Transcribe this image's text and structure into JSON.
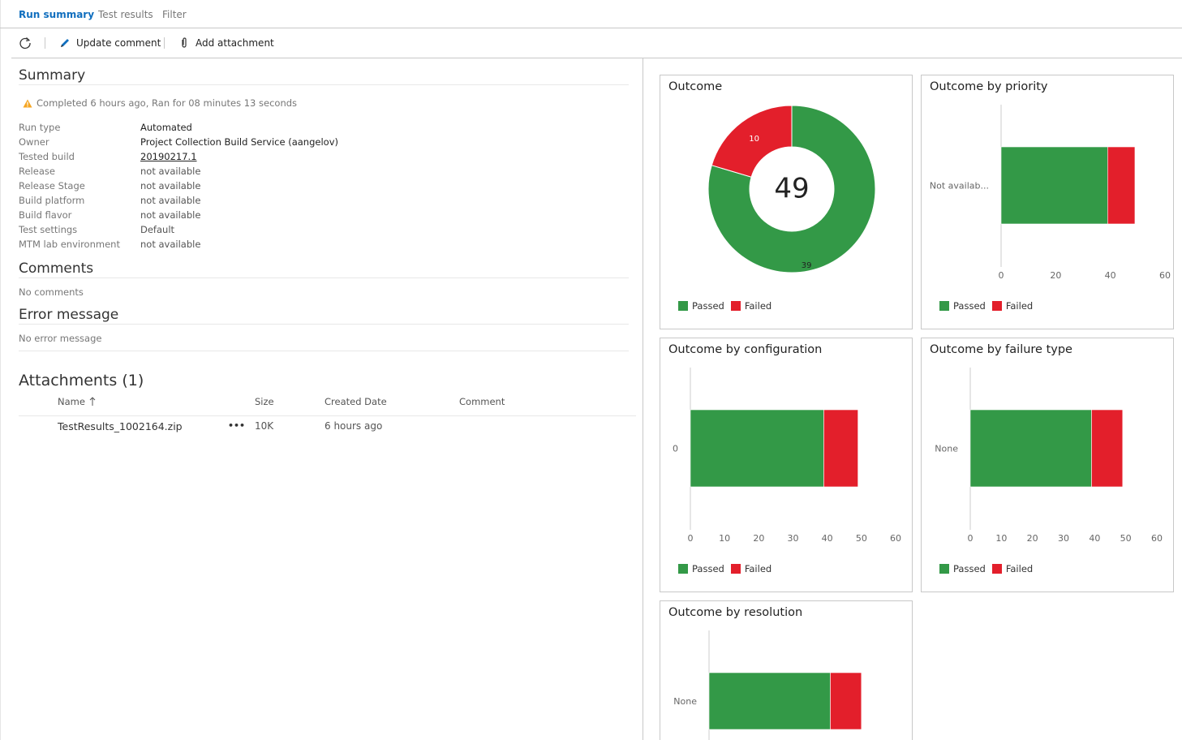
{
  "tabs": [
    {
      "label": "Run summary",
      "active": true
    },
    {
      "label": "Test results",
      "active": false
    },
    {
      "label": "Filter",
      "active": false
    }
  ],
  "toolbar": {
    "refresh_icon": "refresh-icon",
    "update_comment": "Update comment",
    "add_attachment": "Add attachment"
  },
  "summary": {
    "title": "Summary",
    "status": "Completed 6 hours ago, Ran for 08 minutes 13 seconds",
    "fields": [
      {
        "label": "Run type",
        "value": "Automated"
      },
      {
        "label": "Owner",
        "value": "Project Collection Build Service (aangelov)"
      },
      {
        "label": "Tested build",
        "value": "20190217.1"
      },
      {
        "label": "Release",
        "value": "not available"
      },
      {
        "label": "Release Stage",
        "value": "not available"
      },
      {
        "label": "Build platform",
        "value": "not available"
      },
      {
        "label": "Build flavor",
        "value": "not available"
      },
      {
        "label": "Test settings",
        "value": "Default"
      },
      {
        "label": "MTM lab environment",
        "value": "not available"
      }
    ]
  },
  "comments": {
    "title": "Comments",
    "empty": "No comments"
  },
  "error": {
    "title": "Error message",
    "empty": "No error message"
  },
  "attachments": {
    "title": "Attachments (1)",
    "columns": {
      "name": "Name",
      "size": "Size",
      "created": "Created Date",
      "comment": "Comment"
    },
    "rows": [
      {
        "name": "TestResults_1002164.zip",
        "size": "10K",
        "created": "6 hours ago",
        "comment": ""
      }
    ],
    "more": "•••"
  },
  "legend": {
    "passed": "Passed",
    "failed": "Failed"
  },
  "colors": {
    "passed": "#339947",
    "failed": "#e31f2b",
    "accent": "#106ebe",
    "warning": "#f5a623"
  },
  "chart_data": [
    {
      "type": "pie",
      "title": "Outcome",
      "center_label": "49",
      "slices": [
        {
          "name": "Passed",
          "value": 39,
          "label": "39"
        },
        {
          "name": "Failed",
          "value": 10,
          "label": "10"
        }
      ]
    },
    {
      "type": "bar",
      "title": "Outcome by priority",
      "categories": [
        "Not availab..."
      ],
      "series": [
        {
          "name": "Passed",
          "values": [
            39
          ]
        },
        {
          "name": "Failed",
          "values": [
            10
          ]
        }
      ],
      "xlim": [
        0,
        60
      ],
      "ticks": [
        "0",
        "20",
        "40",
        "60"
      ]
    },
    {
      "type": "bar",
      "title": "Outcome by configuration",
      "categories": [
        "0"
      ],
      "series": [
        {
          "name": "Passed",
          "values": [
            39
          ]
        },
        {
          "name": "Failed",
          "values": [
            10
          ]
        }
      ],
      "xlim": [
        0,
        60
      ],
      "ticks": [
        "0",
        "10",
        "20",
        "30",
        "40",
        "50",
        "60"
      ]
    },
    {
      "type": "bar",
      "title": "Outcome by failure type",
      "categories": [
        "None"
      ],
      "series": [
        {
          "name": "Passed",
          "values": [
            39
          ]
        },
        {
          "name": "Failed",
          "values": [
            10
          ]
        }
      ],
      "xlim": [
        0,
        60
      ],
      "ticks": [
        "0",
        "10",
        "20",
        "30",
        "40",
        "50",
        "60"
      ]
    },
    {
      "type": "bar",
      "title": "Outcome by resolution",
      "categories": [
        "None"
      ],
      "series": [
        {
          "name": "Passed",
          "values": [
            39
          ]
        },
        {
          "name": "Failed",
          "values": [
            10
          ]
        }
      ],
      "xlim": [
        0,
        60
      ],
      "ticks": []
    }
  ]
}
